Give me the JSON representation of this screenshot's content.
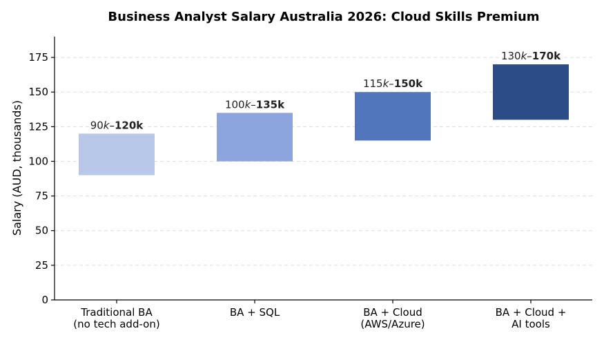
{
  "chart_data": {
    "type": "bar",
    "title": "Business Analyst Salary Australia 2026: Cloud Skills Premium",
    "xlabel": "",
    "ylabel": "Salary (AUD, thousands)",
    "ylim": [
      0,
      190
    ],
    "yticks": [
      0,
      25,
      50,
      75,
      100,
      125,
      150,
      175
    ],
    "grid": true,
    "categories": [
      [
        "Traditional BA",
        "(no tech add-on)"
      ],
      [
        "BA + SQL"
      ],
      [
        "BA + Cloud",
        "(AWS/Azure)"
      ],
      [
        "BA + Cloud +",
        "AI tools"
      ]
    ],
    "ranges": [
      {
        "low": 90,
        "high": 120,
        "label_low": "90",
        "label_high": "120k",
        "color": "#b8c8e8"
      },
      {
        "low": 100,
        "high": 135,
        "label_low": "100",
        "label_high": "135k",
        "color": "#8ca5dc"
      },
      {
        "low": 115,
        "high": 150,
        "label_low": "115",
        "label_high": "150k",
        "color": "#5276bc"
      },
      {
        "low": 130,
        "high": 170,
        "label_low": "130",
        "label_high": "170k",
        "color": "#2c4c88"
      }
    ],
    "label_italic_part": "k",
    "label_separator": "–"
  }
}
